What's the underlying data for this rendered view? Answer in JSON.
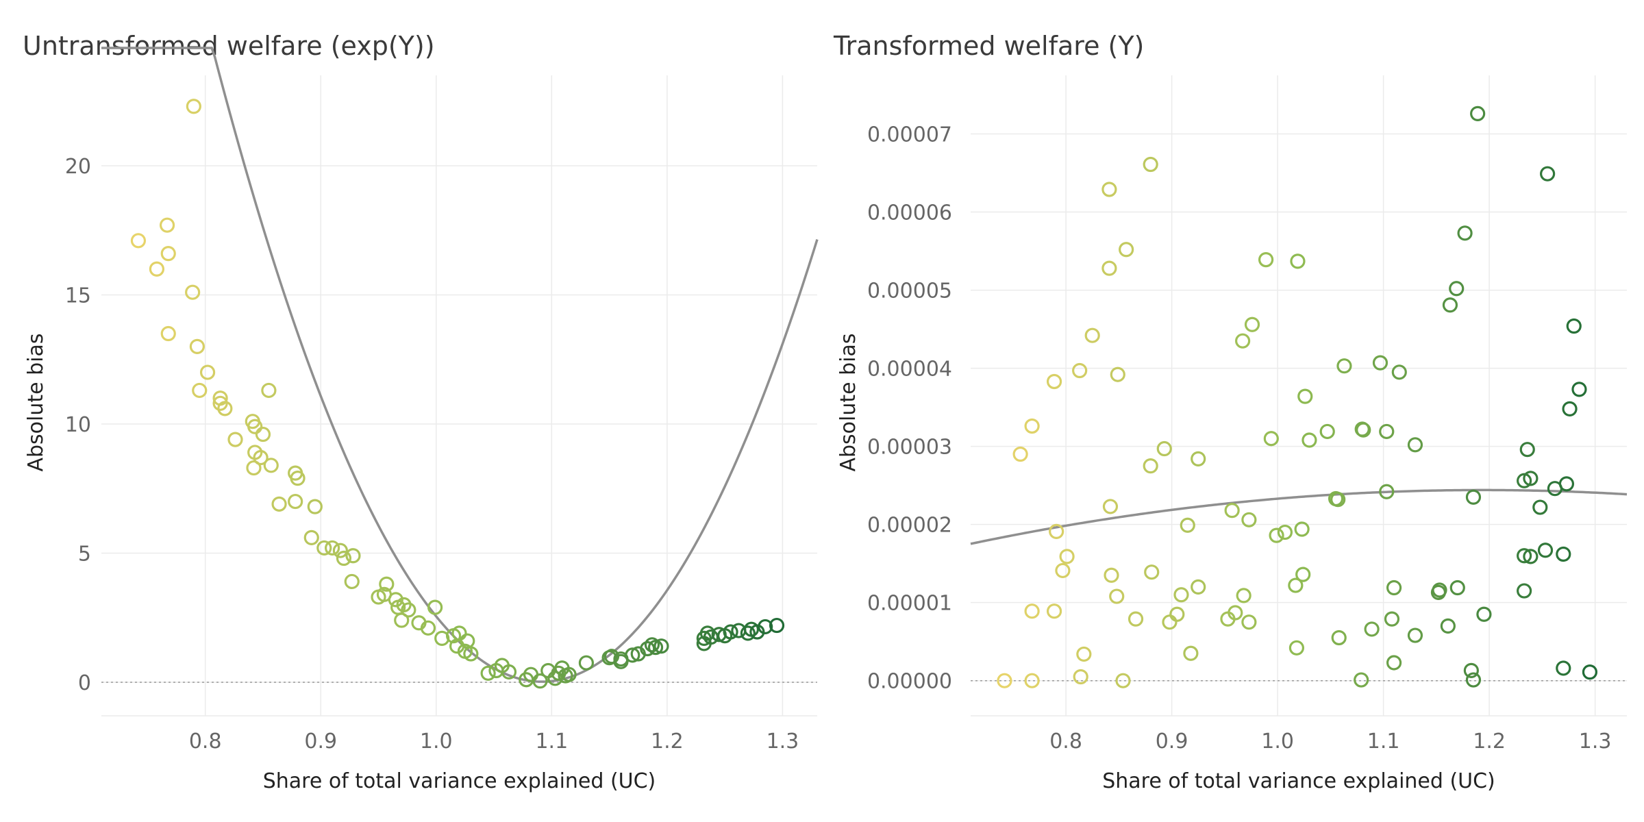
{
  "chart_data": [
    {
      "type": "scatter",
      "title": "Untransformed welfare (exp(Y))",
      "xlabel": "Share of total variance explained (UC)",
      "ylabel": "Absolute bias",
      "xlim": [
        0.71,
        1.33
      ],
      "ylim": [
        -1.3,
        23.5
      ],
      "xticks": [
        "0.8",
        "0.9",
        "1.0",
        "1.1",
        "1.2",
        "1.3"
      ],
      "yticks": [
        "0",
        "5",
        "10",
        "15",
        "20"
      ],
      "xtick_values": [
        0.8,
        0.9,
        1.0,
        1.1,
        1.2,
        1.3
      ],
      "ytick_values": [
        0,
        5,
        10,
        15,
        20
      ],
      "grid": true,
      "reference_line_y": 0,
      "color_scale": {
        "low": "#e8d46a",
        "mid": "#8fbb52",
        "high": "#1f6b35",
        "domain": [
          0.74,
          1.3
        ]
      },
      "points": [
        {
          "x": 0.79,
          "y": 22.3
        },
        {
          "x": 0.742,
          "y": 17.1
        },
        {
          "x": 0.767,
          "y": 17.7
        },
        {
          "x": 0.758,
          "y": 16.0
        },
        {
          "x": 0.768,
          "y": 16.6
        },
        {
          "x": 0.789,
          "y": 15.1
        },
        {
          "x": 0.768,
          "y": 13.5
        },
        {
          "x": 0.793,
          "y": 13.0
        },
        {
          "x": 0.802,
          "y": 12.0
        },
        {
          "x": 0.795,
          "y": 11.3
        },
        {
          "x": 0.855,
          "y": 11.3
        },
        {
          "x": 0.813,
          "y": 11.0
        },
        {
          "x": 0.817,
          "y": 10.6
        },
        {
          "x": 0.813,
          "y": 10.8
        },
        {
          "x": 0.841,
          "y": 10.1
        },
        {
          "x": 0.843,
          "y": 9.9
        },
        {
          "x": 0.85,
          "y": 9.6
        },
        {
          "x": 0.826,
          "y": 9.4
        },
        {
          "x": 0.843,
          "y": 8.9
        },
        {
          "x": 0.848,
          "y": 8.7
        },
        {
          "x": 0.842,
          "y": 8.3
        },
        {
          "x": 0.857,
          "y": 8.4
        },
        {
          "x": 0.878,
          "y": 8.1
        },
        {
          "x": 0.88,
          "y": 7.9
        },
        {
          "x": 0.864,
          "y": 6.9
        },
        {
          "x": 0.878,
          "y": 7.0
        },
        {
          "x": 0.895,
          "y": 6.8
        },
        {
          "x": 0.892,
          "y": 5.6
        },
        {
          "x": 0.903,
          "y": 5.2
        },
        {
          "x": 0.91,
          "y": 5.2
        },
        {
          "x": 0.917,
          "y": 5.1
        },
        {
          "x": 0.92,
          "y": 4.8
        },
        {
          "x": 0.928,
          "y": 4.9
        },
        {
          "x": 0.927,
          "y": 3.9
        },
        {
          "x": 0.95,
          "y": 3.3
        },
        {
          "x": 0.955,
          "y": 3.4
        },
        {
          "x": 0.957,
          "y": 3.8
        },
        {
          "x": 0.965,
          "y": 3.2
        },
        {
          "x": 0.967,
          "y": 2.9
        },
        {
          "x": 0.972,
          "y": 3.0
        },
        {
          "x": 0.976,
          "y": 2.8
        },
        {
          "x": 0.97,
          "y": 2.4
        },
        {
          "x": 0.985,
          "y": 2.3
        },
        {
          "x": 0.993,
          "y": 2.1
        },
        {
          "x": 0.999,
          "y": 2.9
        },
        {
          "x": 1.005,
          "y": 1.7
        },
        {
          "x": 1.015,
          "y": 1.8
        },
        {
          "x": 1.02,
          "y": 1.9
        },
        {
          "x": 1.027,
          "y": 1.6
        },
        {
          "x": 1.018,
          "y": 1.4
        },
        {
          "x": 1.03,
          "y": 1.1
        },
        {
          "x": 1.025,
          "y": 1.2
        },
        {
          "x": 1.045,
          "y": 0.35
        },
        {
          "x": 1.052,
          "y": 0.45
        },
        {
          "x": 1.057,
          "y": 0.65
        },
        {
          "x": 1.063,
          "y": 0.4
        },
        {
          "x": 1.078,
          "y": 0.1
        },
        {
          "x": 1.082,
          "y": 0.3
        },
        {
          "x": 1.09,
          "y": 0.05
        },
        {
          "x": 1.097,
          "y": 0.45
        },
        {
          "x": 1.103,
          "y": 0.15
        },
        {
          "x": 1.106,
          "y": 0.35
        },
        {
          "x": 1.109,
          "y": 0.55
        },
        {
          "x": 1.112,
          "y": 0.25
        },
        {
          "x": 1.115,
          "y": 0.3
        },
        {
          "x": 1.13,
          "y": 0.75
        },
        {
          "x": 1.15,
          "y": 0.95
        },
        {
          "x": 1.152,
          "y": 1.0
        },
        {
          "x": 1.16,
          "y": 0.9
        },
        {
          "x": 1.16,
          "y": 0.8
        },
        {
          "x": 1.17,
          "y": 1.05
        },
        {
          "x": 1.175,
          "y": 1.1
        },
        {
          "x": 1.183,
          "y": 1.3
        },
        {
          "x": 1.187,
          "y": 1.45
        },
        {
          "x": 1.19,
          "y": 1.35
        },
        {
          "x": 1.195,
          "y": 1.4
        },
        {
          "x": 1.232,
          "y": 1.5
        },
        {
          "x": 1.232,
          "y": 1.7
        },
        {
          "x": 1.235,
          "y": 1.9
        },
        {
          "x": 1.238,
          "y": 1.75
        },
        {
          "x": 1.245,
          "y": 1.85
        },
        {
          "x": 1.25,
          "y": 1.8
        },
        {
          "x": 1.255,
          "y": 1.95
        },
        {
          "x": 1.262,
          "y": 2.0
        },
        {
          "x": 1.27,
          "y": 1.9
        },
        {
          "x": 1.273,
          "y": 2.05
        },
        {
          "x": 1.278,
          "y": 1.95
        },
        {
          "x": 1.285,
          "y": 2.15
        },
        {
          "x": 1.295,
          "y": 2.2
        }
      ],
      "fit": {
        "type": "quadratic",
        "coefficients": [
          301.3,
          -657.8,
          359.05
        ]
      }
    },
    {
      "type": "scatter",
      "title": "Transformed welfare (Y)",
      "xlabel": "Share of total variance explained (UC)",
      "ylabel": "Absolute bias",
      "xlim": [
        0.71,
        1.33
      ],
      "ylim": [
        -4.5e-06,
        7.75e-05
      ],
      "xticks": [
        "0.8",
        "0.9",
        "1.0",
        "1.1",
        "1.2",
        "1.3"
      ],
      "yticks": [
        "0.00000",
        "0.00001",
        "0.00002",
        "0.00003",
        "0.00004",
        "0.00005",
        "0.00006",
        "0.00007"
      ],
      "xtick_values": [
        0.8,
        0.9,
        1.0,
        1.1,
        1.2,
        1.3
      ],
      "ytick_values": [
        0,
        1e-05,
        2e-05,
        3e-05,
        4e-05,
        5e-05,
        6e-05,
        7e-05
      ],
      "grid": true,
      "reference_line_y": 0,
      "color_scale": {
        "low": "#e8d46a",
        "mid": "#8fbb52",
        "high": "#1f6b35",
        "domain": [
          0.74,
          1.3
        ]
      },
      "points": [
        {
          "x": 1.189,
          "y": 7.26e-05
        },
        {
          "x": 0.88,
          "y": 6.61e-05
        },
        {
          "x": 1.255,
          "y": 6.49e-05
        },
        {
          "x": 0.841,
          "y": 6.29e-05
        },
        {
          "x": 1.177,
          "y": 5.73e-05
        },
        {
          "x": 0.857,
          "y": 5.52e-05
        },
        {
          "x": 0.989,
          "y": 5.39e-05
        },
        {
          "x": 1.019,
          "y": 5.37e-05
        },
        {
          "x": 0.841,
          "y": 5.28e-05
        },
        {
          "x": 1.169,
          "y": 5.02e-05
        },
        {
          "x": 1.163,
          "y": 4.81e-05
        },
        {
          "x": 0.976,
          "y": 4.56e-05
        },
        {
          "x": 1.28,
          "y": 4.54e-05
        },
        {
          "x": 0.825,
          "y": 4.42e-05
        },
        {
          "x": 0.967,
          "y": 4.35e-05
        },
        {
          "x": 1.097,
          "y": 4.07e-05
        },
        {
          "x": 1.063,
          "y": 4.03e-05
        },
        {
          "x": 0.813,
          "y": 3.97e-05
        },
        {
          "x": 1.115,
          "y": 3.95e-05
        },
        {
          "x": 0.849,
          "y": 3.92e-05
        },
        {
          "x": 0.789,
          "y": 3.83e-05
        },
        {
          "x": 1.285,
          "y": 3.73e-05
        },
        {
          "x": 1.026,
          "y": 3.64e-05
        },
        {
          "x": 1.276,
          "y": 3.48e-05
        },
        {
          "x": 0.768,
          "y": 3.26e-05
        },
        {
          "x": 1.08,
          "y": 3.22e-05
        },
        {
          "x": 1.081,
          "y": 3.21e-05
        },
        {
          "x": 1.103,
          "y": 3.19e-05
        },
        {
          "x": 1.047,
          "y": 3.19e-05
        },
        {
          "x": 0.994,
          "y": 3.1e-05
        },
        {
          "x": 1.03,
          "y": 3.08e-05
        },
        {
          "x": 1.13,
          "y": 3.02e-05
        },
        {
          "x": 0.893,
          "y": 2.97e-05
        },
        {
          "x": 1.236,
          "y": 2.96e-05
        },
        {
          "x": 0.757,
          "y": 2.9e-05
        },
        {
          "x": 0.925,
          "y": 2.84e-05
        },
        {
          "x": 0.88,
          "y": 2.75e-05
        },
        {
          "x": 1.239,
          "y": 2.59e-05
        },
        {
          "x": 1.233,
          "y": 2.56e-05
        },
        {
          "x": 1.273,
          "y": 2.52e-05
        },
        {
          "x": 1.262,
          "y": 2.46e-05
        },
        {
          "x": 1.103,
          "y": 2.42e-05
        },
        {
          "x": 1.185,
          "y": 2.35e-05
        },
        {
          "x": 1.055,
          "y": 2.33e-05
        },
        {
          "x": 1.057,
          "y": 2.32e-05
        },
        {
          "x": 0.842,
          "y": 2.23e-05
        },
        {
          "x": 1.248,
          "y": 2.22e-05
        },
        {
          "x": 0.957,
          "y": 2.18e-05
        },
        {
          "x": 0.973,
          "y": 2.06e-05
        },
        {
          "x": 0.915,
          "y": 1.99e-05
        },
        {
          "x": 1.023,
          "y": 1.94e-05
        },
        {
          "x": 0.791,
          "y": 1.91e-05
        },
        {
          "x": 1.007,
          "y": 1.9e-05
        },
        {
          "x": 0.999,
          "y": 1.86e-05
        },
        {
          "x": 1.253,
          "y": 1.67e-05
        },
        {
          "x": 1.27,
          "y": 1.62e-05
        },
        {
          "x": 1.233,
          "y": 1.6e-05
        },
        {
          "x": 1.239,
          "y": 1.59e-05
        },
        {
          "x": 0.801,
          "y": 1.59e-05
        },
        {
          "x": 0.797,
          "y": 1.41e-05
        },
        {
          "x": 0.881,
          "y": 1.39e-05
        },
        {
          "x": 1.024,
          "y": 1.36e-05
        },
        {
          "x": 0.843,
          "y": 1.35e-05
        },
        {
          "x": 1.017,
          "y": 1.22e-05
        },
        {
          "x": 0.925,
          "y": 1.2e-05
        },
        {
          "x": 1.11,
          "y": 1.19e-05
        },
        {
          "x": 1.17,
          "y": 1.19e-05
        },
        {
          "x": 1.153,
          "y": 1.16e-05
        },
        {
          "x": 1.233,
          "y": 1.15e-05
        },
        {
          "x": 1.152,
          "y": 1.13e-05
        },
        {
          "x": 0.909,
          "y": 1.1e-05
        },
        {
          "x": 0.968,
          "y": 1.09e-05
        },
        {
          "x": 0.848,
          "y": 1.08e-05
        },
        {
          "x": 0.768,
          "y": 8.9e-06
        },
        {
          "x": 0.789,
          "y": 8.9e-06
        },
        {
          "x": 0.96,
          "y": 8.7e-06
        },
        {
          "x": 0.905,
          "y": 8.5e-06
        },
        {
          "x": 1.195,
          "y": 8.5e-06
        },
        {
          "x": 0.866,
          "y": 7.9e-06
        },
        {
          "x": 0.953,
          "y": 7.9e-06
        },
        {
          "x": 1.108,
          "y": 7.9e-06
        },
        {
          "x": 0.898,
          "y": 7.5e-06
        },
        {
          "x": 0.973,
          "y": 7.5e-06
        },
        {
          "x": 1.161,
          "y": 7e-06
        },
        {
          "x": 1.089,
          "y": 6.6e-06
        },
        {
          "x": 1.13,
          "y": 5.8e-06
        },
        {
          "x": 1.058,
          "y": 5.5e-06
        },
        {
          "x": 1.018,
          "y": 4.2e-06
        },
        {
          "x": 0.918,
          "y": 3.5e-06
        },
        {
          "x": 0.817,
          "y": 3.4e-06
        },
        {
          "x": 1.11,
          "y": 2.3e-06
        },
        {
          "x": 1.27,
          "y": 1.6e-06
        },
        {
          "x": 1.183,
          "y": 1.3e-06
        },
        {
          "x": 1.295,
          "y": 1.1e-06
        },
        {
          "x": 0.814,
          "y": 5e-07
        },
        {
          "x": 0.742,
          "y": 0.0
        },
        {
          "x": 0.768,
          "y": 0.0
        },
        {
          "x": 0.854,
          "y": 0.0
        },
        {
          "x": 1.079,
          "y": 1e-07
        },
        {
          "x": 1.185,
          "y": 1e-07
        }
      ],
      "fit": {
        "type": "quadratic",
        "coefficients": [
          -2.94e-05,
          7.02e-05,
          -1.75e-05
        ]
      }
    }
  ]
}
